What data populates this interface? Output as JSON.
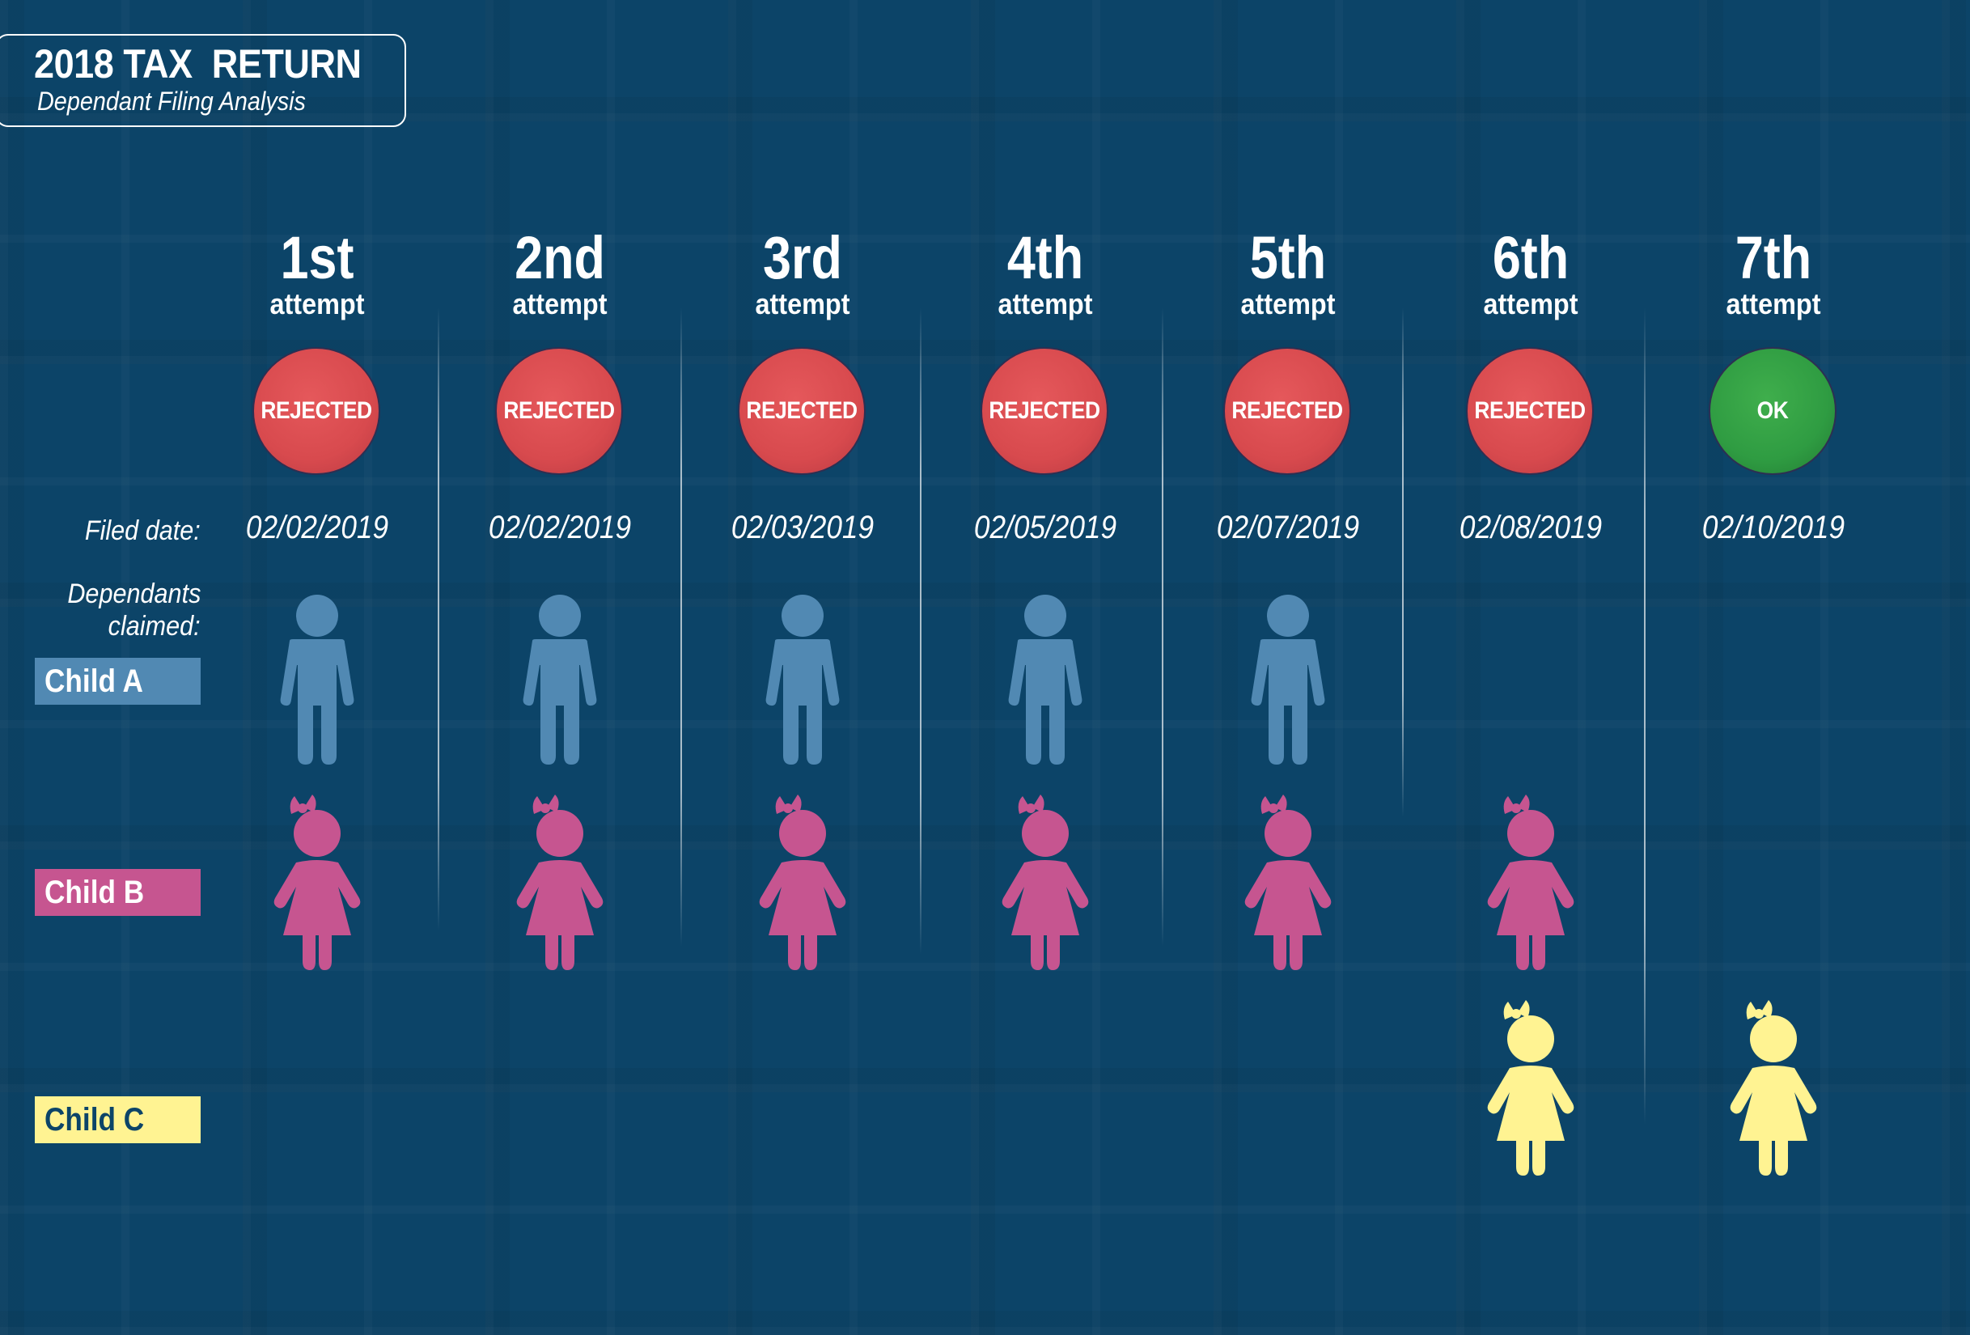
{
  "title": {
    "main": "2018 TAX  RETURN",
    "sub": "Dependant Filing Analysis"
  },
  "labels": {
    "filed_date": "Filed date:",
    "dependants_line1": "Dependants",
    "dependants_line2": "claimed:"
  },
  "children": [
    {
      "label": "Child A",
      "color": "#5189b3",
      "icon": "boy-icon",
      "text_color": "#ffffff"
    },
    {
      "label": "Child B",
      "color": "#c65590",
      "icon": "girl-icon",
      "text_color": "#ffffff"
    },
    {
      "label": "Child C",
      "color": "#fff392",
      "icon": "girl-icon",
      "text_color": "#0c4468"
    }
  ],
  "colors": {
    "background": "#0c4468",
    "rejected": "#d84a4e",
    "ok": "#2f9c42"
  },
  "attempts": [
    {
      "ordinal": "1st",
      "word": "attempt",
      "status": "REJECTED",
      "status_type": "rejected",
      "date": "02/02/2019",
      "claimed": [
        "Child A",
        "Child B"
      ]
    },
    {
      "ordinal": "2nd",
      "word": "attempt",
      "status": "REJECTED",
      "status_type": "rejected",
      "date": "02/02/2019",
      "claimed": [
        "Child A",
        "Child B"
      ]
    },
    {
      "ordinal": "3rd",
      "word": "attempt",
      "status": "REJECTED",
      "status_type": "rejected",
      "date": "02/03/2019",
      "claimed": [
        "Child A",
        "Child B"
      ]
    },
    {
      "ordinal": "4th",
      "word": "attempt",
      "status": "REJECTED",
      "status_type": "rejected",
      "date": "02/05/2019",
      "claimed": [
        "Child A",
        "Child B"
      ]
    },
    {
      "ordinal": "5th",
      "word": "attempt",
      "status": "REJECTED",
      "status_type": "rejected",
      "date": "02/07/2019",
      "claimed": [
        "Child A",
        "Child B"
      ]
    },
    {
      "ordinal": "6th",
      "word": "attempt",
      "status": "REJECTED",
      "status_type": "rejected",
      "date": "02/08/2019",
      "claimed": [
        "Child B",
        "Child C"
      ]
    },
    {
      "ordinal": "7th",
      "word": "attempt",
      "status": "OK",
      "status_type": "ok",
      "date": "02/10/2019",
      "claimed": [
        "Child C"
      ]
    }
  ]
}
